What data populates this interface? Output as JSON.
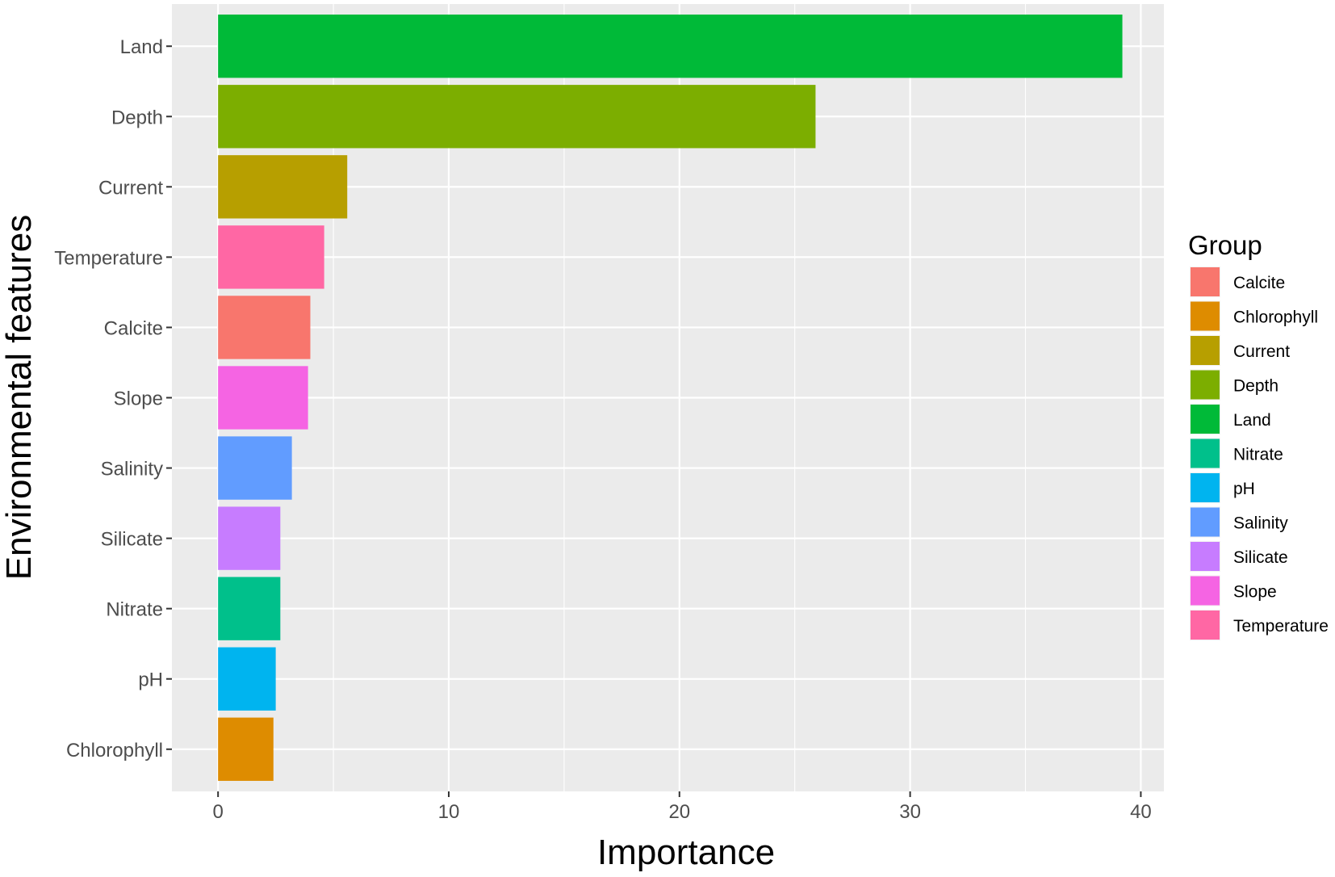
{
  "chart_data": {
    "type": "bar",
    "orientation": "horizontal",
    "xlabel": "Importance",
    "ylabel": "Environmental features",
    "xlim": [
      -2,
      41
    ],
    "x_ticks": [
      0,
      10,
      20,
      30,
      40
    ],
    "grid": true,
    "categories": [
      "Land",
      "Depth",
      "Current",
      "Temperature",
      "Calcite",
      "Slope",
      "Salinity",
      "Silicate",
      "Nitrate",
      "pH",
      "Chlorophyll"
    ],
    "values": [
      39.2,
      25.9,
      5.6,
      4.6,
      4.0,
      3.9,
      3.2,
      2.7,
      2.7,
      2.5,
      2.4
    ],
    "bar_colors": [
      "#00BA38",
      "#7CAE00",
      "#B79F00",
      "#FF67A4",
      "#F8766D",
      "#F564E3",
      "#619CFF",
      "#C77CFF",
      "#00C08B",
      "#00B4EF",
      "#DE8C00"
    ],
    "legend": {
      "title": "Group",
      "placement": "right",
      "items": [
        {
          "label": "Calcite",
          "color": "#F8766D"
        },
        {
          "label": "Chlorophyll",
          "color": "#DE8C00"
        },
        {
          "label": "Current",
          "color": "#B79F00"
        },
        {
          "label": "Depth",
          "color": "#7CAE00"
        },
        {
          "label": "Land",
          "color": "#00BA38"
        },
        {
          "label": "Nitrate",
          "color": "#00C08B"
        },
        {
          "label": "pH",
          "color": "#00B4EF"
        },
        {
          "label": "Salinity",
          "color": "#619CFF"
        },
        {
          "label": "Silicate",
          "color": "#C77CFF"
        },
        {
          "label": "Slope",
          "color": "#F564E3"
        },
        {
          "label": "Temperature",
          "color": "#FF67A4"
        }
      ]
    },
    "panel_background": "#EBEBEB",
    "grid_color": "#FFFFFF"
  }
}
